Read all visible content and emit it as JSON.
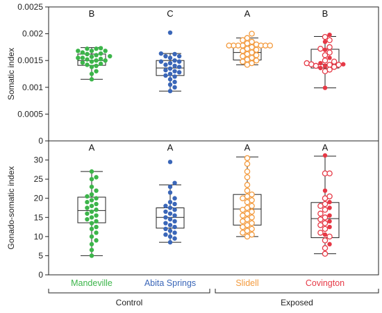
{
  "colors": {
    "Mandeville": "#3cb54a",
    "Abita Springs": "#3a66b8",
    "Slidell": "#f39a3d",
    "Covington": "#e63946",
    "axis": "#222222"
  },
  "categories": [
    "Mandeville",
    "Abita Springs",
    "Slidell",
    "Covington"
  ],
  "groups": [
    {
      "label": "Control",
      "categories": [
        "Mandeville",
        "Abita Springs"
      ]
    },
    {
      "label": "Exposed",
      "categories": [
        "Slidell",
        "Covington"
      ]
    }
  ],
  "chart_data": [
    {
      "type": "scatter",
      "ylabel": "Somatic index",
      "ylim": [
        0,
        0.0025
      ],
      "yticks": [
        0,
        0.0005,
        0.001,
        0.0015,
        0.002,
        0.0025
      ],
      "ytick_labels": [
        "0",
        "0.0005",
        "0.001",
        "0.0015",
        "0.002",
        "0.0025"
      ],
      "letters": [
        "B",
        "C",
        "A",
        "B"
      ],
      "series": [
        {
          "name": "Mandeville",
          "marker": "filled",
          "box": {
            "whisker_low": 0.00115,
            "q1": 0.00141,
            "median": 0.0015,
            "q3": 0.00162,
            "whisker_high": 0.00174
          },
          "points": [
            0.00173,
            0.00172,
            0.00172,
            0.00168,
            0.00168,
            0.00168,
            0.00165,
            0.00163,
            0.00162,
            0.0016,
            0.00158,
            0.00157,
            0.00155,
            0.00155,
            0.00153,
            0.00152,
            0.0015,
            0.0015,
            0.00148,
            0.00146,
            0.00144,
            0.00142,
            0.0014,
            0.00138,
            0.0013,
            0.00125,
            0.00115
          ]
        },
        {
          "name": "Abita Springs",
          "marker": "filled",
          "box": {
            "whisker_low": 0.00093,
            "q1": 0.00122,
            "median": 0.00136,
            "q3": 0.0015,
            "whisker_high": 0.00163
          },
          "points": [
            0.00202,
            0.00163,
            0.00162,
            0.00158,
            0.00158,
            0.00155,
            0.0015,
            0.00148,
            0.00148,
            0.00145,
            0.00142,
            0.0014,
            0.00138,
            0.00135,
            0.00132,
            0.0013,
            0.00128,
            0.00125,
            0.00122,
            0.0012,
            0.00115,
            0.0011,
            0.00105,
            0.001,
            0.00093
          ]
        },
        {
          "name": "Slidell",
          "marker": "open",
          "box": {
            "whisker_low": 0.00142,
            "q1": 0.00151,
            "median": 0.00165,
            "q3": 0.00178,
            "whisker_high": 0.00192
          },
          "points": [
            0.002,
            0.00192,
            0.00188,
            0.00185,
            0.00182,
            0.0018,
            0.00178,
            0.00178,
            0.00178,
            0.00178,
            0.00178,
            0.00178,
            0.00178,
            0.00175,
            0.00172,
            0.0017,
            0.00168,
            0.00165,
            0.00162,
            0.0016,
            0.00158,
            0.00155,
            0.00152,
            0.0015,
            0.00148,
            0.00145,
            0.00142
          ]
        },
        {
          "name": "Covington",
          "marker": "mixed",
          "box": {
            "whisker_low": 0.00099,
            "q1": 0.00136,
            "median": 0.00143,
            "q3": 0.00171,
            "whisker_high": 0.00195
          },
          "points": [
            0.00198,
            0.00194,
            0.00188,
            0.00185,
            0.00175,
            0.00172,
            0.0017,
            0.00165,
            0.0016,
            0.00155,
            0.0015,
            0.00148,
            0.00145,
            0.00145,
            0.00143,
            0.00143,
            0.00142,
            0.00142,
            0.0014,
            0.0014,
            0.00138,
            0.00136,
            0.00133,
            0.0013,
            0.00099
          ]
        }
      ]
    },
    {
      "type": "scatter",
      "ylabel": "Gonado-somatic index",
      "ylim": [
        0,
        35
      ],
      "yticks": [
        0,
        5,
        10,
        15,
        20,
        25,
        30
      ],
      "ytick_labels": [
        "0",
        "5",
        "10",
        "15",
        "20",
        "25",
        "30"
      ],
      "letters": [
        "A",
        "A",
        "A",
        "A"
      ],
      "series": [
        {
          "name": "Mandeville",
          "marker": "filled",
          "box": {
            "whisker_low": 5.0,
            "q1": 13.6,
            "median": 16.8,
            "q3": 20.3,
            "whisker_high": 27.0
          },
          "points": [
            27.0,
            25.5,
            25.0,
            23.0,
            22.0,
            21.0,
            20.5,
            20.0,
            19.5,
            19.0,
            18.5,
            18.0,
            17.5,
            17.0,
            16.5,
            16.0,
            15.5,
            15.0,
            14.5,
            14.0,
            13.5,
            12.5,
            12.0,
            11.0,
            10.0,
            9.0,
            8.0,
            6.5,
            5.0
          ]
        },
        {
          "name": "Abita Springs",
          "marker": "filled",
          "box": {
            "whisker_low": 8.5,
            "q1": 12.2,
            "median": 15.0,
            "q3": 17.5,
            "whisker_high": 23.5
          },
          "points": [
            29.5,
            24.0,
            23.0,
            21.5,
            20.0,
            19.0,
            18.5,
            18.0,
            17.5,
            17.0,
            16.5,
            16.0,
            15.5,
            15.0,
            14.5,
            14.0,
            13.5,
            13.0,
            12.5,
            12.0,
            11.5,
            11.0,
            10.5,
            10.0,
            9.5,
            8.5
          ]
        },
        {
          "name": "Slidell",
          "marker": "open",
          "box": {
            "whisker_low": 10.0,
            "q1": 13.0,
            "median": 17.2,
            "q3": 21.0,
            "whisker_high": 30.8
          },
          "points": [
            30.5,
            29.0,
            27.0,
            25.5,
            23.5,
            22.0,
            21.0,
            20.5,
            20.0,
            19.5,
            19.0,
            18.0,
            17.5,
            17.0,
            16.5,
            16.0,
            15.5,
            15.0,
            14.5,
            14.0,
            13.5,
            13.0,
            12.5,
            12.0,
            11.5,
            11.0,
            10.5,
            10.0
          ]
        },
        {
          "name": "Covington",
          "marker": "mixed",
          "box": {
            "whisker_low": 5.5,
            "q1": 9.7,
            "median": 14.7,
            "q3": 18.9,
            "whisker_high": 31.0
          },
          "points": [
            31.2,
            26.5,
            26.5,
            22.0,
            20.5,
            20.0,
            19.0,
            18.5,
            18.0,
            17.5,
            17.0,
            16.0,
            15.5,
            15.0,
            14.5,
            14.0,
            13.5,
            13.0,
            12.5,
            12.0,
            11.0,
            10.5,
            10.0,
            9.0,
            8.0,
            7.0,
            5.5
          ]
        }
      ]
    }
  ]
}
